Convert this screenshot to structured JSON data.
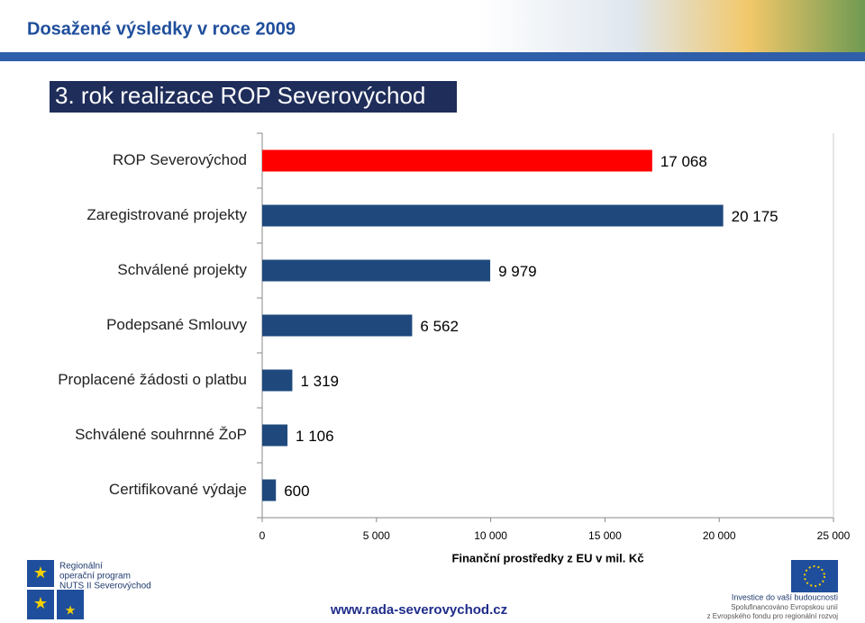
{
  "header": {
    "title": "Dosažené výsledky v roce 2009"
  },
  "chart_data": {
    "type": "barh",
    "title": "3. rok realizace ROP Severovýchod",
    "categories": [
      "ROP Severovýchod",
      "Zaregistrované projekty",
      "Schválené projekty",
      "Podepsané Smlouvy",
      "Proplacené žádosti o platbu",
      "Schválené souhrnné ŽoP",
      "Certifikované výdaje"
    ],
    "values": [
      17068,
      20175,
      9979,
      6562,
      1319,
      1106,
      600
    ],
    "value_labels": [
      "17 068",
      "20 175",
      "9 979",
      "6 562",
      "1 319",
      "1 106",
      "600"
    ],
    "colors": [
      "#ff0000",
      "#1f497d",
      "#1f497d",
      "#1f497d",
      "#1f497d",
      "#1f497d",
      "#1f497d"
    ],
    "xlim": [
      0,
      25000
    ],
    "xticks": [
      0,
      {
        "value": 5000,
        "label": "5 000"
      },
      {
        "value": 10000,
        "label": "10 000"
      },
      {
        "value": 15000,
        "label": "15 000"
      },
      {
        "value": 20000,
        "label": "20 000"
      },
      {
        "value": 25000,
        "label": "25 000"
      }
    ],
    "xlabel": "Finanční prostředky z EU v mil. Kč"
  },
  "footer": {
    "url": "www.rada-severovychod.cz",
    "logo_left": [
      "Regionální",
      "operační program",
      "NUTS II Severovýchod"
    ],
    "logo_right": [
      "Investice do vaší budoucnosti",
      "Spolufinancováno Evropskou unií",
      "z Evropského fondu pro regionální rozvoj"
    ]
  }
}
